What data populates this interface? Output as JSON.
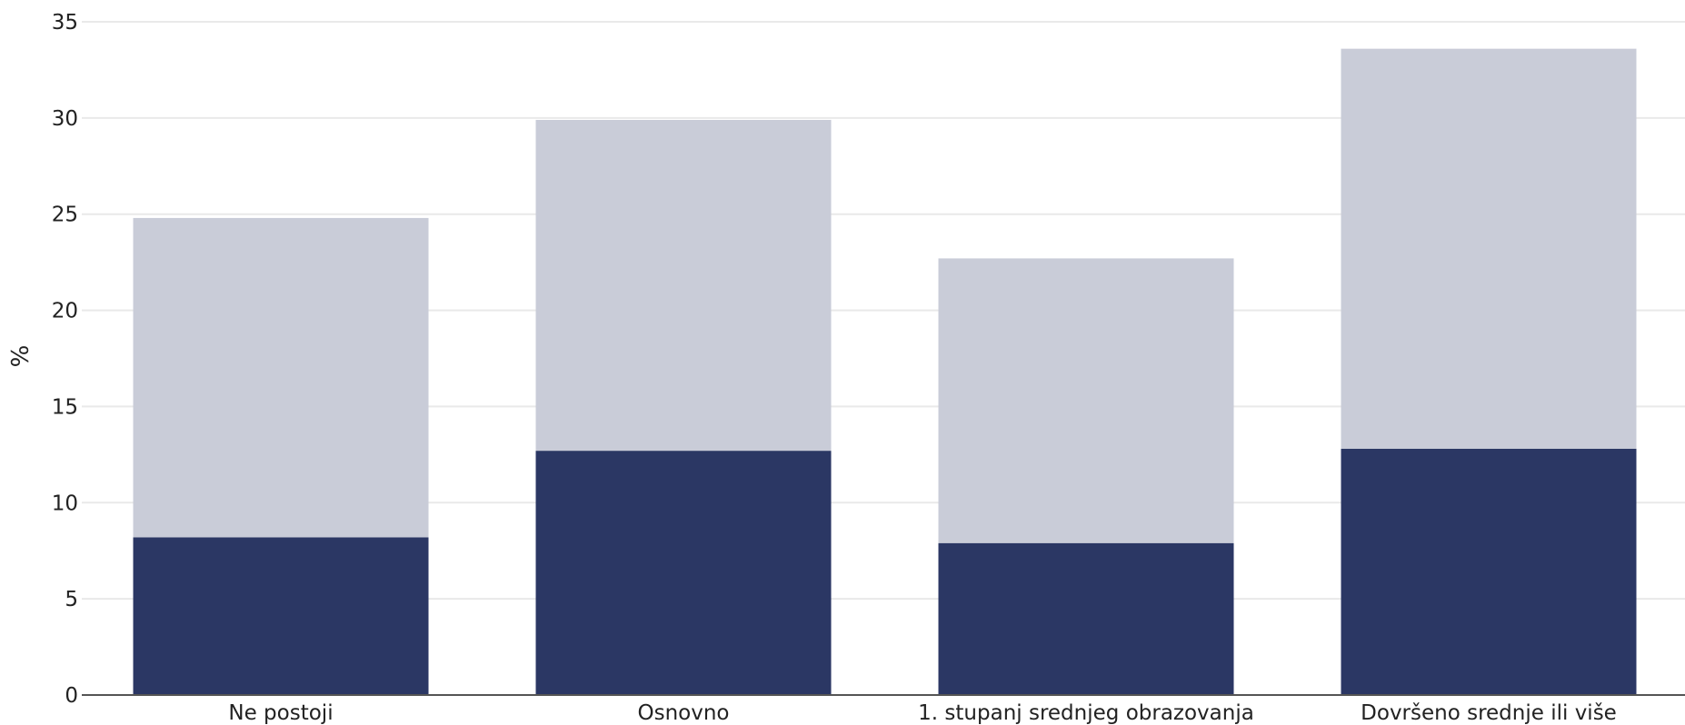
{
  "chart_data": {
    "type": "bar",
    "stacked": true,
    "title": "",
    "xlabel": "",
    "ylabel": "%",
    "ylim": [
      0,
      35
    ],
    "yticks": [
      "0",
      "5",
      "10",
      "15",
      "20",
      "25",
      "30",
      "35"
    ],
    "categories": [
      "Ne postoji",
      "Osnovno",
      "1. stupanj srednjeg obrazovanja",
      "Dovršeno srednje ili više"
    ],
    "series": [
      {
        "color": "#2b3764",
        "values": [
          8.2,
          12.7,
          7.9,
          12.8
        ]
      },
      {
        "color": "#c9ccd8",
        "values": [
          16.6,
          17.2,
          14.8,
          20.8
        ]
      }
    ],
    "grid": true,
    "legend": "none"
  }
}
